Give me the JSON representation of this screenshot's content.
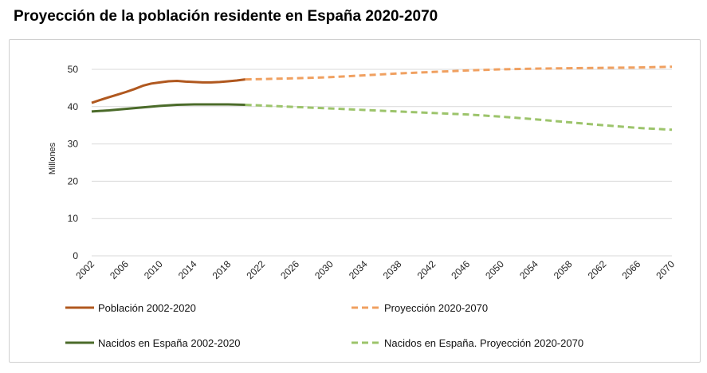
{
  "title": "Proyección de la población residente en España 2020-2070",
  "chart_data": {
    "type": "line",
    "title": "Proyección de la población residente en España 2020-2070",
    "ylabel": "Millones",
    "xlabel": "",
    "xlim": [
      2002,
      2070
    ],
    "ylim": [
      0,
      50
    ],
    "yticks": [
      0,
      10,
      20,
      30,
      40,
      50
    ],
    "xticks": [
      "2002",
      "2006",
      "2010",
      "2014",
      "2018",
      "2022",
      "2026",
      "2030",
      "2034",
      "2038",
      "2042",
      "2046",
      "2050",
      "2054",
      "2058",
      "2062",
      "2066",
      "2070"
    ],
    "grid": "horizontal",
    "legend_position": "bottom",
    "series": [
      {
        "name": "Población 2002-2020",
        "color": "#b0581f",
        "dash": "solid",
        "x": [
          2002,
          2003,
          2004,
          2005,
          2006,
          2007,
          2008,
          2009,
          2010,
          2011,
          2012,
          2013,
          2014,
          2015,
          2016,
          2017,
          2018,
          2019,
          2020
        ],
        "values": [
          41.0,
          41.8,
          42.5,
          43.2,
          43.9,
          44.7,
          45.6,
          46.2,
          46.5,
          46.8,
          46.9,
          46.7,
          46.6,
          46.5,
          46.5,
          46.6,
          46.8,
          47.0,
          47.3
        ]
      },
      {
        "name": "Proyección 2020-2070",
        "color": "#f0a060",
        "dash": "dashed",
        "x": [
          2020,
          2022,
          2026,
          2030,
          2034,
          2038,
          2042,
          2046,
          2050,
          2054,
          2058,
          2062,
          2066,
          2070
        ],
        "values": [
          47.3,
          47.4,
          47.6,
          47.9,
          48.4,
          48.9,
          49.3,
          49.7,
          50.0,
          50.2,
          50.3,
          50.4,
          50.5,
          50.7
        ]
      },
      {
        "name": "Nacidos en España 2002-2020",
        "color": "#4b6b2a",
        "dash": "solid",
        "x": [
          2002,
          2004,
          2006,
          2008,
          2010,
          2012,
          2014,
          2016,
          2018,
          2020
        ],
        "values": [
          38.7,
          39.0,
          39.4,
          39.8,
          40.2,
          40.5,
          40.6,
          40.6,
          40.6,
          40.5
        ]
      },
      {
        "name": "Nacidos en España. Proyección 2020-2070",
        "color": "#9cc46b",
        "dash": "dashed",
        "x": [
          2020,
          2022,
          2026,
          2030,
          2034,
          2038,
          2042,
          2046,
          2050,
          2054,
          2058,
          2062,
          2066,
          2070
        ],
        "values": [
          40.5,
          40.3,
          39.9,
          39.5,
          39.1,
          38.7,
          38.3,
          37.9,
          37.3,
          36.6,
          35.8,
          35.0,
          34.3,
          33.8
        ]
      }
    ]
  }
}
